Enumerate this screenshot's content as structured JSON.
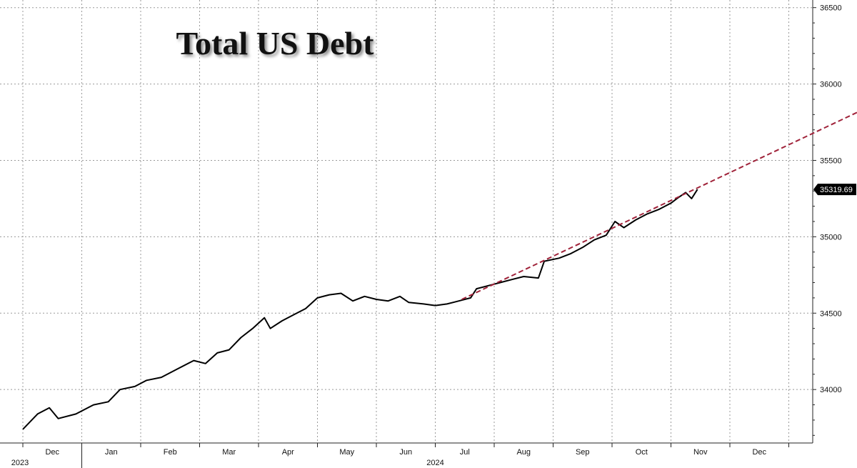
{
  "chart_data": {
    "type": "line",
    "title": "Total US Debt",
    "y_axis": {
      "position": "right",
      "ylim": [
        33650,
        36550
      ],
      "ticks": [
        34000,
        34500,
        35000,
        35500,
        36000,
        36500
      ]
    },
    "x_axis": {
      "months": [
        "Dec",
        "Jan",
        "Feb",
        "Mar",
        "Apr",
        "May",
        "Jun",
        "Jul",
        "Aug",
        "Sep",
        "Oct",
        "Nov",
        "Dec"
      ],
      "years": [
        "2023",
        "2024"
      ]
    },
    "grid": true,
    "last_value_label": "35319.69",
    "series": [
      {
        "style": "solid",
        "color": "#000000",
        "points": [
          [
            0.0,
            33740
          ],
          [
            0.25,
            33840
          ],
          [
            0.45,
            33880
          ],
          [
            0.6,
            33810
          ],
          [
            0.9,
            33840
          ],
          [
            1.2,
            33900
          ],
          [
            1.45,
            33920
          ],
          [
            1.65,
            34000
          ],
          [
            1.9,
            34020
          ],
          [
            2.1,
            34060
          ],
          [
            2.35,
            34080
          ],
          [
            2.65,
            34140
          ],
          [
            2.9,
            34190
          ],
          [
            3.1,
            34170
          ],
          [
            3.3,
            34240
          ],
          [
            3.5,
            34260
          ],
          [
            3.7,
            34340
          ],
          [
            3.9,
            34400
          ],
          [
            4.1,
            34470
          ],
          [
            4.2,
            34400
          ],
          [
            4.4,
            34450
          ],
          [
            4.6,
            34490
          ],
          [
            4.8,
            34530
          ],
          [
            5.0,
            34600
          ],
          [
            5.2,
            34620
          ],
          [
            5.4,
            34630
          ],
          [
            5.6,
            34580
          ],
          [
            5.8,
            34610
          ],
          [
            6.0,
            34590
          ],
          [
            6.2,
            34580
          ],
          [
            6.4,
            34610
          ],
          [
            6.55,
            34570
          ],
          [
            6.8,
            34560
          ],
          [
            7.0,
            34550
          ],
          [
            7.2,
            34560
          ],
          [
            7.4,
            34580
          ],
          [
            7.6,
            34600
          ],
          [
            7.7,
            34660
          ],
          [
            7.9,
            34680
          ],
          [
            8.1,
            34700
          ],
          [
            8.3,
            34720
          ],
          [
            8.5,
            34740
          ],
          [
            8.75,
            34730
          ],
          [
            8.85,
            34840
          ],
          [
            9.1,
            34860
          ],
          [
            9.3,
            34890
          ],
          [
            9.5,
            34930
          ],
          [
            9.7,
            34980
          ],
          [
            9.9,
            35010
          ],
          [
            10.05,
            35100
          ],
          [
            10.2,
            35060
          ],
          [
            10.4,
            35110
          ],
          [
            10.6,
            35150
          ],
          [
            10.8,
            35180
          ],
          [
            11.0,
            35220
          ],
          [
            11.1,
            35250
          ],
          [
            11.25,
            35290
          ],
          [
            11.35,
            35250
          ],
          [
            11.45,
            35310
          ]
        ]
      },
      {
        "style": "dashed",
        "color": "#a0233a",
        "points": [
          [
            7.45,
            34590
          ],
          [
            16.55,
            36250
          ]
        ]
      }
    ]
  }
}
